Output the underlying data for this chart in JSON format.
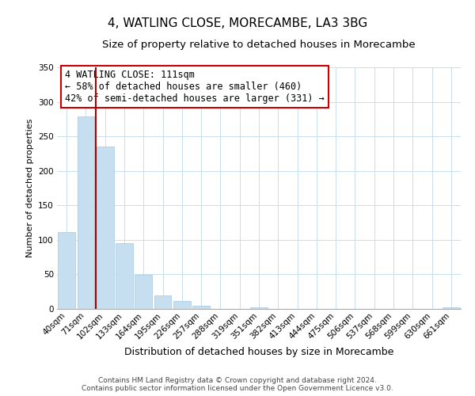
{
  "title": "4, WATLING CLOSE, MORECAMBE, LA3 3BG",
  "subtitle": "Size of property relative to detached houses in Morecambe",
  "xlabel": "Distribution of detached houses by size in Morecambe",
  "ylabel": "Number of detached properties",
  "bar_labels": [
    "40sqm",
    "71sqm",
    "102sqm",
    "133sqm",
    "164sqm",
    "195sqm",
    "226sqm",
    "257sqm",
    "288sqm",
    "319sqm",
    "351sqm",
    "382sqm",
    "413sqm",
    "444sqm",
    "475sqm",
    "506sqm",
    "537sqm",
    "568sqm",
    "599sqm",
    "630sqm",
    "661sqm"
  ],
  "bar_values": [
    111,
    279,
    235,
    95,
    49,
    19,
    12,
    5,
    0,
    0,
    2,
    0,
    0,
    0,
    0,
    0,
    0,
    0,
    0,
    0,
    2
  ],
  "bar_color": "#c5dff0",
  "bar_edge_color": "#a8c8e0",
  "grid_color": "#c8dff0",
  "property_line_color": "#aa0000",
  "annotation_title": "4 WATLING CLOSE: 111sqm",
  "annotation_line1": "← 58% of detached houses are smaller (460)",
  "annotation_line2": "42% of semi-detached houses are larger (331) →",
  "annotation_box_color": "#ffffff",
  "annotation_box_edge": "#cc0000",
  "ylim": [
    0,
    350
  ],
  "yticks": [
    0,
    50,
    100,
    150,
    200,
    250,
    300,
    350
  ],
  "footer_line1": "Contains HM Land Registry data © Crown copyright and database right 2024.",
  "footer_line2": "Contains public sector information licensed under the Open Government Licence v3.0.",
  "title_fontsize": 11,
  "subtitle_fontsize": 9.5,
  "xlabel_fontsize": 9,
  "ylabel_fontsize": 8,
  "tick_fontsize": 7.5,
  "annotation_fontsize": 8.5,
  "footer_fontsize": 6.5
}
